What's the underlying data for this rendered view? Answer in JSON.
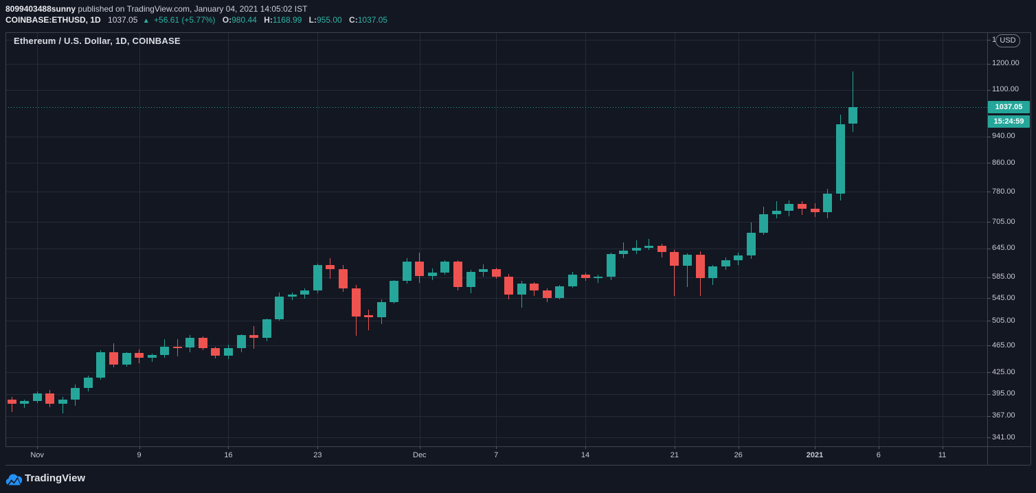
{
  "header": {
    "publisher": "8099403488sunny",
    "published_info": " published on TradingView.com, January 04, 2021 14:05:02 IST",
    "symbol_line": "COINBASE:ETHUSD, 1D",
    "last_price": "1037.05",
    "direction_arrow": "▲",
    "change_text": "+56.61 (+5.77%)",
    "o_label": "O:",
    "o_value": "980.44",
    "h_label": "H:",
    "h_value": "1168.99",
    "l_label": "L:",
    "l_value": "955.00",
    "c_label": "C:",
    "c_value": "1037.05"
  },
  "chart_data": {
    "type": "candlestick",
    "title": "Ethereum / U.S. Dollar, 1D, COINBASE",
    "symbol": "COINBASE:ETHUSD",
    "interval": "1D",
    "scale": "log",
    "last_price": 1037.05,
    "last_price_label": "1037.05",
    "countdown": "15:24:59",
    "colors": {
      "up": "#26a69a",
      "down": "#ef5350",
      "background": "#131722",
      "grid": "#262b38",
      "accent": "#26a69a"
    },
    "price_axis": {
      "unit_button": "USD",
      "range_log": [
        331.2,
        1334.4
      ],
      "ticks": [
        {
          "label": "1300.00",
          "value": 1300
        },
        {
          "label": "1200.00",
          "value": 1200
        },
        {
          "label": "1100.00",
          "value": 1100
        },
        {
          "label": "940.00",
          "value": 940
        },
        {
          "label": "860.00",
          "value": 860
        },
        {
          "label": "780.00",
          "value": 780
        },
        {
          "label": "705.00",
          "value": 705
        },
        {
          "label": "645.00",
          "value": 645
        },
        {
          "label": "585.00",
          "value": 585
        },
        {
          "label": "545.00",
          "value": 545
        },
        {
          "label": "505.00",
          "value": 505
        },
        {
          "label": "465.00",
          "value": 465
        },
        {
          "label": "425.00",
          "value": 425
        },
        {
          "label": "395.00",
          "value": 395
        },
        {
          "label": "367.00",
          "value": 367
        },
        {
          "label": "341.00",
          "value": 341
        }
      ]
    },
    "time_axis": {
      "ticks": [
        {
          "label": "Nov",
          "day": 2,
          "bold": false
        },
        {
          "label": "9",
          "day": 10,
          "bold": false
        },
        {
          "label": "16",
          "day": 17,
          "bold": false
        },
        {
          "label": "23",
          "day": 24,
          "bold": false
        },
        {
          "label": "Dec",
          "day": 32,
          "bold": false
        },
        {
          "label": "7",
          "day": 38,
          "bold": false
        },
        {
          "label": "14",
          "day": 45,
          "bold": false
        },
        {
          "label": "21",
          "day": 52,
          "bold": false
        },
        {
          "label": "26",
          "day": 57,
          "bold": false
        },
        {
          "label": "2021",
          "day": 63,
          "bold": true
        },
        {
          "label": "6",
          "day": 68,
          "bold": false
        },
        {
          "label": "11",
          "day": 73,
          "bold": false
        }
      ]
    },
    "candles": [
      [
        "2020-10-30",
        388,
        391,
        372,
        382
      ],
      [
        "2020-10-31",
        382,
        388,
        377,
        386
      ],
      [
        "2020-11-01",
        386,
        398,
        383,
        396
      ],
      [
        "2020-11-02",
        396,
        400,
        378,
        382
      ],
      [
        "2020-11-03",
        382,
        391,
        370,
        388
      ],
      [
        "2020-11-04",
        388,
        408,
        380,
        403
      ],
      [
        "2020-11-05",
        403,
        420,
        398,
        417
      ],
      [
        "2020-11-06",
        417,
        458,
        414,
        455
      ],
      [
        "2020-11-07",
        455,
        468,
        432,
        436
      ],
      [
        "2020-11-08",
        436,
        455,
        433,
        454
      ],
      [
        "2020-11-09",
        454,
        459,
        438,
        446
      ],
      [
        "2020-11-10",
        446,
        452,
        440,
        450
      ],
      [
        "2020-11-11",
        450,
        475,
        446,
        463
      ],
      [
        "2020-11-12",
        463,
        475,
        448,
        462
      ],
      [
        "2020-11-13",
        462,
        482,
        455,
        477
      ],
      [
        "2020-11-14",
        477,
        479,
        458,
        461
      ],
      [
        "2020-11-15",
        461,
        463,
        445,
        449
      ],
      [
        "2020-11-16",
        449,
        466,
        444,
        461
      ],
      [
        "2020-11-17",
        461,
        483,
        455,
        482
      ],
      [
        "2020-11-18",
        482,
        496,
        460,
        477
      ],
      [
        "2020-11-19",
        477,
        509,
        472,
        508
      ],
      [
        "2020-11-20",
        508,
        556,
        505,
        548
      ],
      [
        "2020-11-21",
        548,
        556,
        542,
        552
      ],
      [
        "2020-11-22",
        552,
        563,
        544,
        560
      ],
      [
        "2020-11-23",
        560,
        613,
        555,
        609
      ],
      [
        "2020-11-24",
        609,
        624,
        582,
        601
      ],
      [
        "2020-11-25",
        601,
        610,
        557,
        563
      ],
      [
        "2020-11-26",
        563,
        570,
        481,
        512
      ],
      [
        "2020-11-27",
        515,
        525,
        490,
        511
      ],
      [
        "2020-11-28",
        511,
        543,
        500,
        538
      ],
      [
        "2020-11-29",
        538,
        580,
        535,
        578
      ],
      [
        "2020-11-30",
        578,
        624,
        573,
        616
      ],
      [
        "2020-12-01",
        616,
        635,
        574,
        587
      ],
      [
        "2020-12-02",
        587,
        603,
        580,
        594
      ],
      [
        "2020-12-03",
        594,
        619,
        590,
        616
      ],
      [
        "2020-12-04",
        616,
        620,
        560,
        566
      ],
      [
        "2020-12-05",
        566,
        600,
        555,
        595
      ],
      [
        "2020-12-06",
        595,
        611,
        586,
        601
      ],
      [
        "2020-12-07",
        601,
        604,
        582,
        586
      ],
      [
        "2020-12-08",
        586,
        592,
        543,
        552
      ],
      [
        "2020-12-09",
        552,
        578,
        528,
        573
      ],
      [
        "2020-12-10",
        573,
        576,
        550,
        560
      ],
      [
        "2020-12-11",
        560,
        563,
        538,
        545
      ],
      [
        "2020-12-12",
        545,
        570,
        543,
        568
      ],
      [
        "2020-12-13",
        568,
        595,
        565,
        590
      ],
      [
        "2020-12-14",
        590,
        594,
        578,
        583
      ],
      [
        "2020-12-15",
        583,
        590,
        574,
        586
      ],
      [
        "2020-12-16",
        586,
        636,
        580,
        633
      ],
      [
        "2020-12-17",
        633,
        658,
        624,
        640
      ],
      [
        "2020-12-18",
        640,
        662,
        633,
        646
      ],
      [
        "2020-12-19",
        646,
        665,
        641,
        651
      ],
      [
        "2020-12-20",
        651,
        655,
        625,
        637
      ],
      [
        "2020-12-21",
        637,
        641,
        549,
        608
      ],
      [
        "2020-12-22",
        608,
        634,
        566,
        631
      ],
      [
        "2020-12-23",
        631,
        638,
        550,
        584
      ],
      [
        "2020-12-24",
        584,
        610,
        570,
        607
      ],
      [
        "2020-12-25",
        607,
        625,
        600,
        620
      ],
      [
        "2020-12-26",
        620,
        635,
        610,
        630
      ],
      [
        "2020-12-27",
        630,
        703,
        622,
        680
      ],
      [
        "2020-12-28",
        680,
        742,
        675,
        724
      ],
      [
        "2020-12-29",
        724,
        755,
        714,
        731
      ],
      [
        "2020-12-30",
        731,
        757,
        719,
        748
      ],
      [
        "2020-12-31",
        748,
        756,
        722,
        736
      ],
      [
        "2021-01-01",
        736,
        750,
        716,
        729
      ],
      [
        "2021-01-02",
        729,
        787,
        714,
        775
      ],
      [
        "2021-01-03",
        775,
        1012,
        757,
        980
      ],
      [
        "2021-01-04",
        980.44,
        1168.99,
        955.0,
        1037.05
      ]
    ]
  },
  "footer": {
    "brand": "TradingView"
  }
}
